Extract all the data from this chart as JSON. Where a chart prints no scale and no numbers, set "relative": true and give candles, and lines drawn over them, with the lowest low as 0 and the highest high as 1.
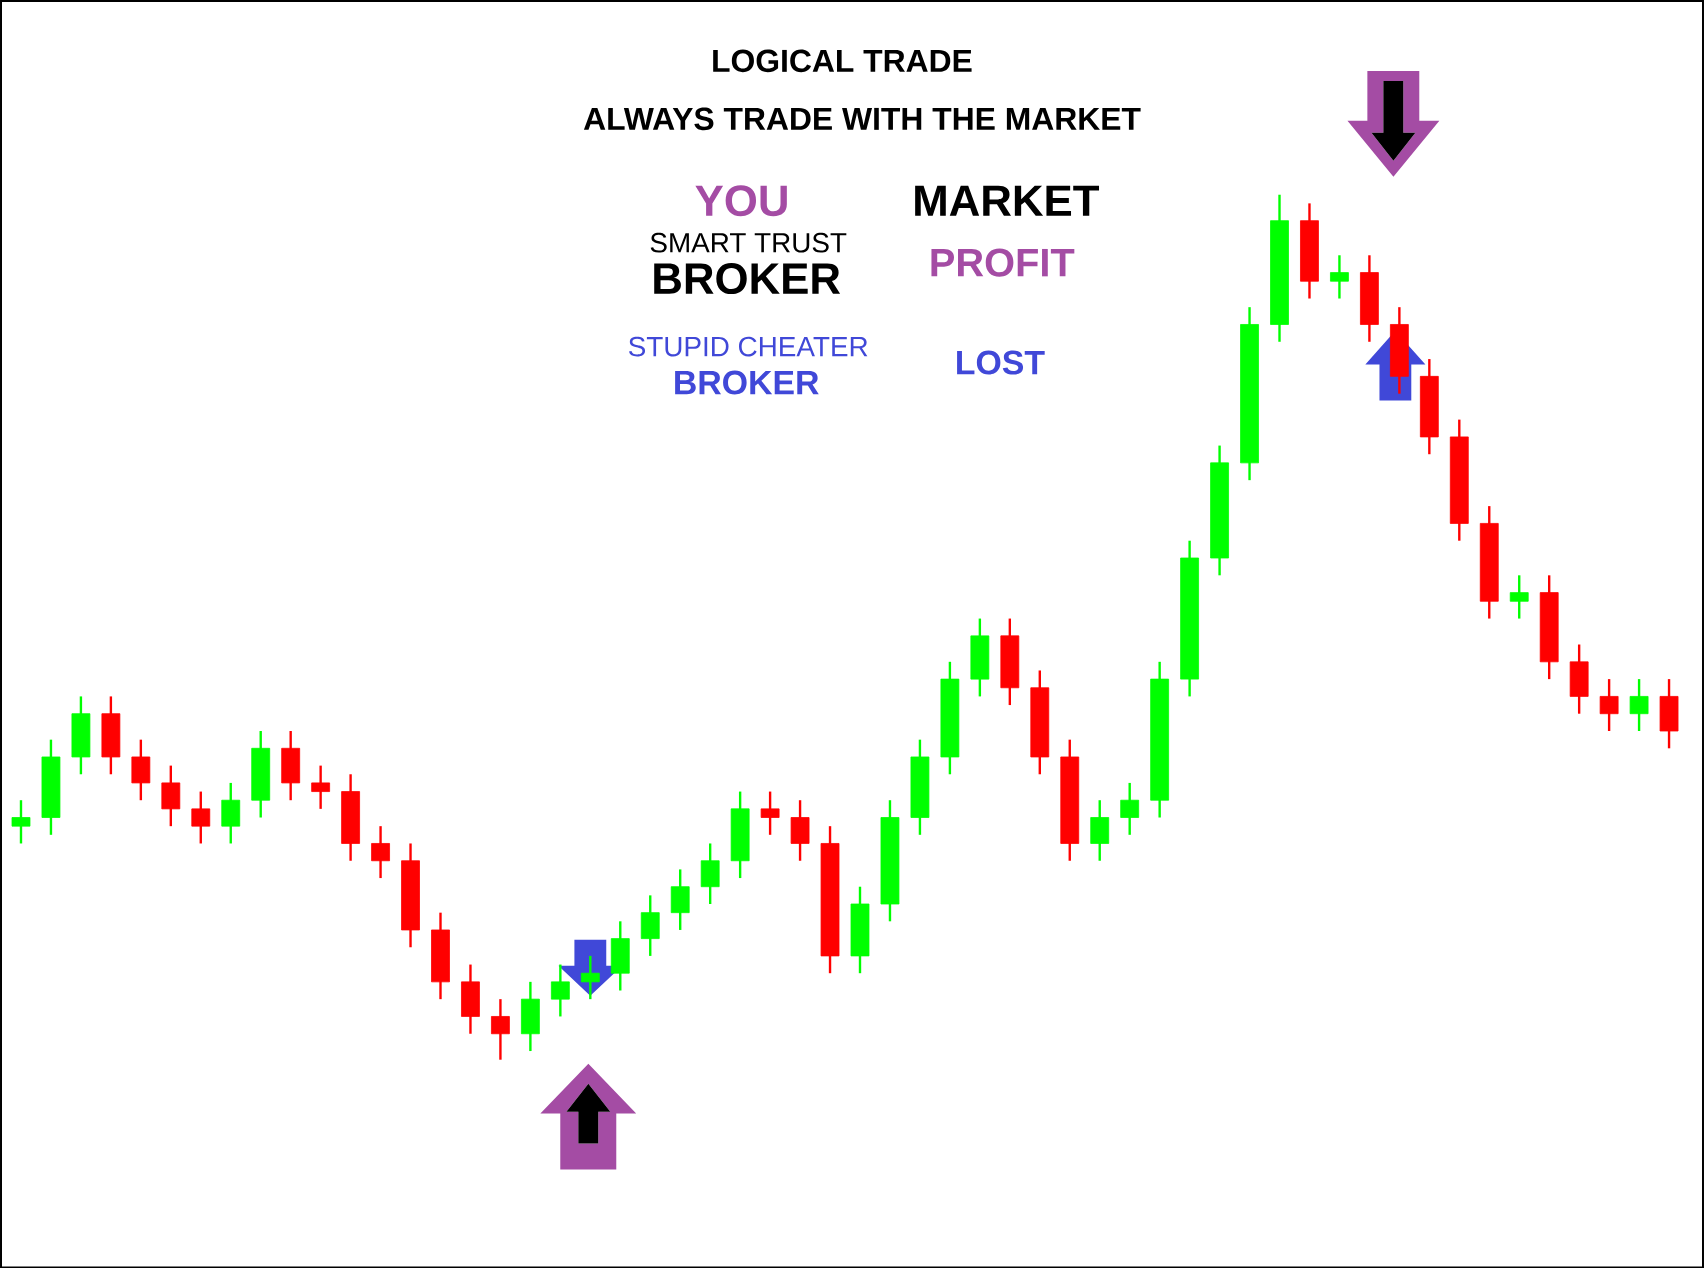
{
  "chart_data": {
    "type": "candlestick",
    "relative": true,
    "title": "LOGICAL TRADE",
    "subtitle": "ALWAYS TRADE WITH THE MARKET",
    "annotations": [
      "YOU",
      "SMART TRUST",
      "BROKER",
      "MARKET",
      "PROFIT",
      "STUPID CHEATER",
      "BROKER",
      "LOST"
    ],
    "categories": [
      null,
      null,
      null,
      null,
      null,
      null,
      null,
      null,
      null,
      null,
      null,
      null,
      null,
      null,
      null,
      null,
      null,
      null,
      null,
      null,
      null,
      null,
      null,
      null,
      null,
      null,
      null,
      null,
      null,
      null,
      null,
      null,
      null,
      null,
      null,
      null,
      null,
      null,
      null,
      null,
      null,
      null,
      null,
      null,
      null,
      null,
      null,
      null,
      null,
      null,
      null,
      null,
      null,
      null,
      null,
      null
    ],
    "ohlc": [
      [
        0.27,
        0.3,
        0.25,
        0.28
      ],
      [
        0.28,
        0.37,
        0.26,
        0.35
      ],
      [
        0.35,
        0.42,
        0.33,
        0.4
      ],
      [
        0.4,
        0.42,
        0.33,
        0.35
      ],
      [
        0.35,
        0.37,
        0.3,
        0.32
      ],
      [
        0.32,
        0.34,
        0.27,
        0.29
      ],
      [
        0.29,
        0.31,
        0.25,
        0.27
      ],
      [
        0.27,
        0.32,
        0.25,
        0.3
      ],
      [
        0.3,
        0.38,
        0.28,
        0.36
      ],
      [
        0.36,
        0.38,
        0.3,
        0.32
      ],
      [
        0.32,
        0.34,
        0.29,
        0.31
      ],
      [
        0.31,
        0.33,
        0.23,
        0.25
      ],
      [
        0.25,
        0.27,
        0.21,
        0.23
      ],
      [
        0.23,
        0.25,
        0.13,
        0.15
      ],
      [
        0.15,
        0.17,
        0.07,
        0.09
      ],
      [
        0.09,
        0.11,
        0.03,
        0.05
      ],
      [
        0.05,
        0.07,
        0,
        0.03
      ],
      [
        0.03,
        0.09,
        0.01,
        0.07
      ],
      [
        0.07,
        0.11,
        0.05,
        0.09
      ],
      [
        0.09,
        0.12,
        0.07,
        0.1
      ],
      [
        0.1,
        0.16,
        0.08,
        0.14
      ],
      [
        0.14,
        0.19,
        0.12,
        0.17
      ],
      [
        0.17,
        0.22,
        0.15,
        0.2
      ],
      [
        0.2,
        0.25,
        0.18,
        0.23
      ],
      [
        0.23,
        0.31,
        0.21,
        0.29
      ],
      [
        0.29,
        0.31,
        0.26,
        0.28
      ],
      [
        0.28,
        0.3,
        0.23,
        0.25
      ],
      [
        0.25,
        0.27,
        0.1,
        0.12
      ],
      [
        0.12,
        0.2,
        0.1,
        0.18
      ],
      [
        0.18,
        0.3,
        0.16,
        0.28
      ],
      [
        0.28,
        0.37,
        0.26,
        0.35
      ],
      [
        0.35,
        0.46,
        0.33,
        0.44
      ],
      [
        0.44,
        0.51,
        0.42,
        0.49
      ],
      [
        0.49,
        0.51,
        0.41,
        0.43
      ],
      [
        0.43,
        0.45,
        0.33,
        0.35
      ],
      [
        0.35,
        0.37,
        0.23,
        0.25
      ],
      [
        0.25,
        0.3,
        0.23,
        0.28
      ],
      [
        0.28,
        0.32,
        0.26,
        0.3
      ],
      [
        0.3,
        0.46,
        0.28,
        0.44
      ],
      [
        0.44,
        0.6,
        0.42,
        0.58
      ],
      [
        0.58,
        0.71,
        0.56,
        0.69
      ],
      [
        0.69,
        0.87,
        0.67,
        0.85
      ],
      [
        0.85,
        1,
        0.83,
        0.97
      ],
      [
        0.97,
        0.99,
        0.88,
        0.9
      ],
      [
        0.9,
        0.93,
        0.88,
        0.91
      ],
      [
        0.91,
        0.93,
        0.83,
        0.85
      ],
      [
        0.85,
        0.87,
        0.77,
        0.79
      ],
      [
        0.79,
        0.81,
        0.7,
        0.72
      ],
      [
        0.72,
        0.74,
        0.6,
        0.62
      ],
      [
        0.62,
        0.64,
        0.51,
        0.53
      ],
      [
        0.53,
        0.56,
        0.51,
        0.54
      ],
      [
        0.54,
        0.56,
        0.44,
        0.46
      ],
      [
        0.46,
        0.48,
        0.4,
        0.42
      ],
      [
        0.42,
        0.44,
        0.38,
        0.4
      ],
      [
        0.4,
        0.44,
        0.38,
        0.42
      ],
      [
        0.42,
        0.44,
        0.36,
        0.38
      ]
    ],
    "colors": [
      "#00ff00",
      "#00ff00",
      "#00ff00",
      "#ff0000",
      "#ff0000",
      "#ff0000",
      "#ff0000",
      "#00ff00",
      "#00ff00",
      "#ff0000",
      "#ff0000",
      "#ff0000",
      "#ff0000",
      "#ff0000",
      "#ff0000",
      "#ff0000",
      "#ff0000",
      "#00ff00",
      "#00ff00",
      "#00ff00",
      "#00ff00",
      "#00ff00",
      "#00ff00",
      "#00ff00",
      "#00ff00",
      "#ff0000",
      "#ff0000",
      "#ff0000",
      "#00ff00",
      "#00ff00",
      "#00ff00",
      "#00ff00",
      "#00ff00",
      "#ff0000",
      "#ff0000",
      "#ff0000",
      "#00ff00",
      "#00ff00",
      "#00ff00",
      "#00ff00",
      "#00ff00",
      "#00ff00",
      "#00ff00",
      "#ff0000",
      "#00ff00",
      "#ff0000",
      "#ff0000",
      "#ff0000",
      "#ff0000",
      "#ff0000",
      "#00ff00",
      "#ff0000",
      "#ff0000",
      "#ff0000",
      "#00ff00",
      "#ff0000"
    ]
  }
}
